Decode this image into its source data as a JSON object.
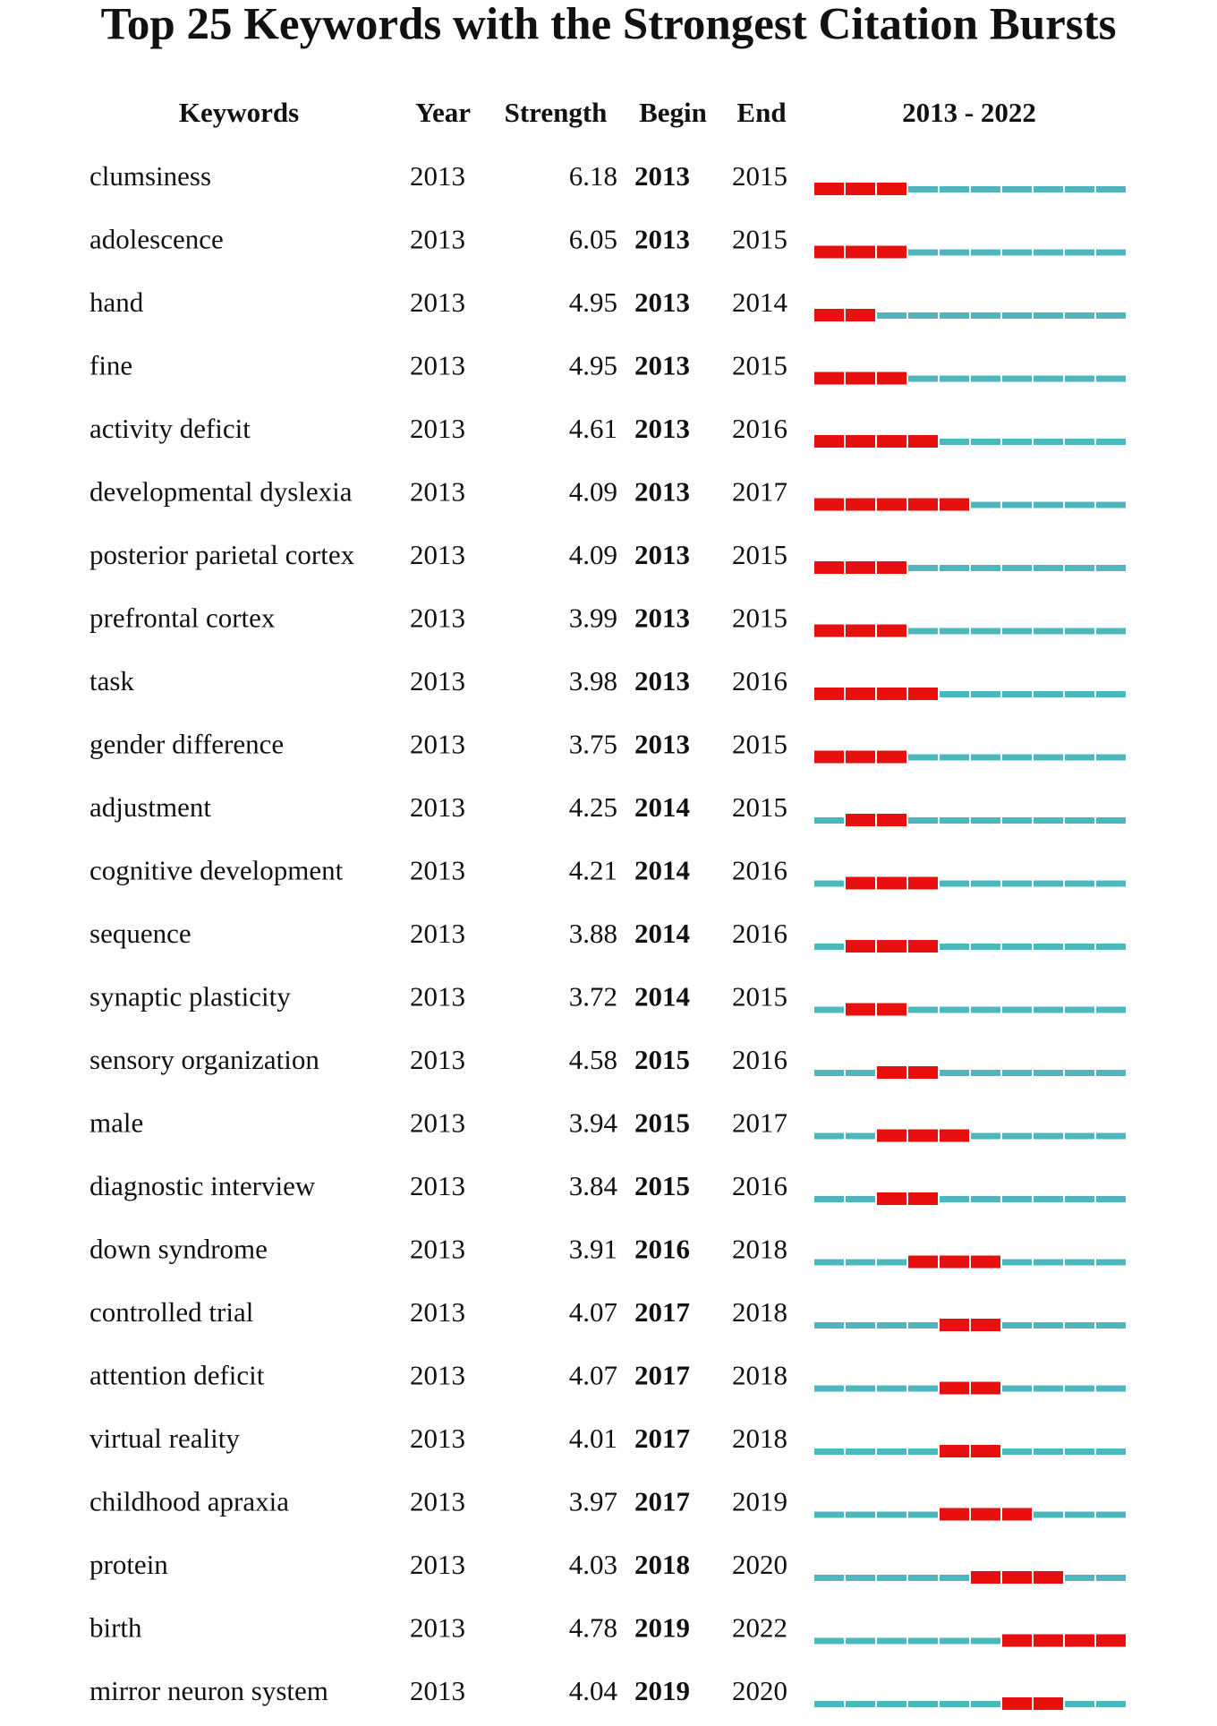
{
  "header": {
    "title": "Top 25 Keywords with the Strongest Citation Bursts"
  },
  "table": {
    "columns": [
      "Keywords",
      "Year",
      "Strength",
      "Begin",
      "End",
      "2013 - 2022"
    ],
    "rows": [
      [
        "clumsiness",
        2013,
        6.18,
        2013,
        2015
      ],
      [
        "adolescence",
        2013,
        6.05,
        2013,
        2015
      ],
      [
        "hand",
        2013,
        4.95,
        2013,
        2014
      ],
      [
        "fine",
        2013,
        4.95,
        2013,
        2015
      ],
      [
        "activity deficit",
        2013,
        4.61,
        2013,
        2016
      ],
      [
        "developmental dyslexia",
        2013,
        4.09,
        2013,
        2017
      ],
      [
        "posterior parietal cortex",
        2013,
        4.09,
        2013,
        2015
      ],
      [
        "prefrontal cortex",
        2013,
        3.99,
        2013,
        2015
      ],
      [
        "task",
        2013,
        3.98,
        2013,
        2016
      ],
      [
        "gender difference",
        2013,
        3.75,
        2013,
        2015
      ],
      [
        "adjustment",
        2013,
        4.25,
        2014,
        2015
      ],
      [
        "cognitive development",
        2013,
        4.21,
        2014,
        2016
      ],
      [
        "sequence",
        2013,
        3.88,
        2014,
        2016
      ],
      [
        "synaptic plasticity",
        2013,
        3.72,
        2014,
        2015
      ],
      [
        "sensory organization",
        2013,
        4.58,
        2015,
        2016
      ],
      [
        "male",
        2013,
        3.94,
        2015,
        2017
      ],
      [
        "diagnostic interview",
        2013,
        3.84,
        2015,
        2016
      ],
      [
        "down syndrome",
        2013,
        3.91,
        2016,
        2018
      ],
      [
        "controlled trial",
        2013,
        4.07,
        2017,
        2018
      ],
      [
        "attention deficit",
        2013,
        4.07,
        2017,
        2018
      ],
      [
        "virtual reality",
        2013,
        4.01,
        2017,
        2018
      ],
      [
        "childhood apraxia",
        2013,
        3.97,
        2017,
        2019
      ],
      [
        "protein",
        2013,
        4.03,
        2018,
        2020
      ],
      [
        "birth",
        2013,
        4.78,
        2019,
        2022
      ],
      [
        "mirror neuron system",
        2013,
        4.04,
        2019,
        2020
      ]
    ]
  }
}
